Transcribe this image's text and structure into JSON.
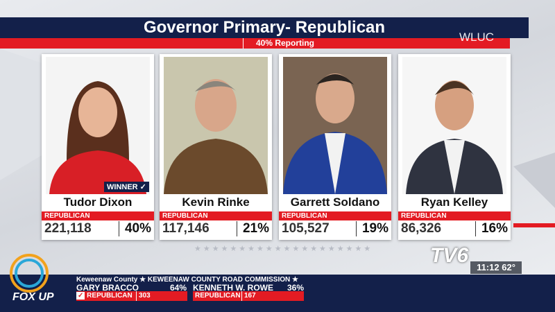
{
  "header": {
    "title": "Governor Primary- Republican",
    "subtitle": "40% Reporting",
    "station": "WLUC"
  },
  "candidates": [
    {
      "name": "Tudor Dixon",
      "party": "REPUBLICAN",
      "votes": "221,118",
      "percent": "40%",
      "status": "WINNER ✓"
    },
    {
      "name": "Kevin Rinke",
      "party": "REPUBLICAN",
      "votes": "117,146",
      "percent": "21%"
    },
    {
      "name": "Garrett Soldano",
      "party": "REPUBLICAN",
      "votes": "105,527",
      "percent": "19%"
    },
    {
      "name": "Ryan Kelley",
      "party": "REPUBLICAN",
      "votes": "86,326",
      "percent": "16%"
    }
  ],
  "ticker": {
    "race": "Keweenaw County ★ KEWEENAW COUNTY ROAD COMMISSION ★",
    "candidates": [
      {
        "name": "GARY BRACCO",
        "percent": "64%",
        "party": "REPUBLICAN",
        "votes": "303",
        "check": "✓"
      },
      {
        "name": "KENNETH W. ROWE",
        "percent": "36%",
        "party": "REPUBLICAN",
        "votes": "167"
      }
    ]
  },
  "logos": {
    "tv6": "TV6",
    "fox": "FOX UP"
  },
  "clock": {
    "time": "11:12",
    "temp": "62°"
  }
}
